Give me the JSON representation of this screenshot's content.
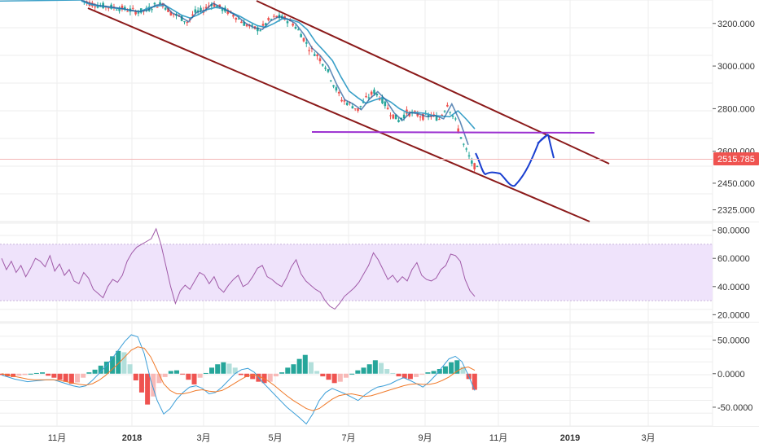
{
  "colors": {
    "up": "#26a69a",
    "down": "#ef5350",
    "ma_fast": "#1e5a9a",
    "ma_slow": "#3aa0c8",
    "channel": "#8b1a1a",
    "horizontal": "#9b30d0",
    "projection": "#1a3fd0",
    "rsi_line": "#a05aa8",
    "rsi_band": "#efe3fb",
    "macd_line": "#3b9ed8",
    "signal_line": "#f07a2a",
    "price_tag": "#ef5350"
  },
  "chart_data": [
    {
      "type": "candlestick",
      "panel": "price",
      "x_ticks": [
        "11月",
        "2018",
        "3月",
        "5月",
        "7月",
        "9月",
        "11月",
        "2019",
        "3月"
      ],
      "y_ticks": [
        "3200.000",
        "3000.000",
        "2800.000",
        "2600.000",
        "2450.000",
        "2325.000"
      ],
      "ylim": [
        2270,
        3310
      ],
      "last_price": "2515.785",
      "series": [
        {
          "values": [
            3310,
            3295,
            3285,
            3280,
            3275,
            3270,
            3262,
            3255,
            3262,
            3285,
            3292,
            3250,
            3232,
            3208,
            3252,
            3262,
            3295,
            3275,
            3255,
            3232,
            3200,
            3180,
            3172,
            3212,
            3232,
            3222,
            3200,
            3150,
            3085,
            3050,
            3000,
            2915,
            2842,
            2822,
            2795,
            2845,
            2880,
            2840,
            2780,
            2745,
            2782,
            2775,
            2762,
            2768,
            2752,
            2822,
            2740,
            2630,
            2545,
            2500
          ]
        },
        {
          "values": [
            3305,
            3290,
            3282,
            3278,
            3272,
            3268,
            3260,
            3256,
            3272,
            3282,
            3285,
            3262,
            3238,
            3225,
            3242,
            3265,
            3275,
            3270,
            3250,
            3232,
            3210,
            3190,
            3182,
            3200,
            3222,
            3218,
            3205,
            3170,
            3112,
            3070,
            3025,
            2950,
            2882,
            2852,
            2825,
            2840,
            2852,
            2830,
            2800,
            2780,
            2782,
            2778,
            2768,
            2765,
            2762,
            2790,
            2750,
            2705
          ]
        }
      ]
    },
    {
      "type": "line",
      "panel": "rsi",
      "y_ticks": [
        "80.0000",
        "60.0000",
        "40.0000",
        "20.0000"
      ],
      "ylim": [
        15,
        85
      ],
      "band": [
        30,
        70
      ],
      "values": [
        60,
        52,
        58,
        50,
        55,
        47,
        53,
        60,
        58,
        54,
        62,
        51,
        56,
        48,
        52,
        44,
        42,
        50,
        46,
        38,
        35,
        32,
        40,
        45,
        43,
        48,
        58,
        64,
        68,
        70,
        72,
        74,
        81,
        70,
        55,
        40,
        28,
        37,
        41,
        38,
        44,
        50,
        48,
        42,
        47,
        39,
        36,
        41,
        45,
        48,
        40,
        42,
        47,
        53,
        55,
        47,
        45,
        42,
        40,
        46,
        54,
        59,
        49,
        44,
        41,
        38,
        36,
        30,
        26,
        24,
        28,
        33,
        36,
        39,
        43,
        49,
        55,
        64,
        59,
        52,
        45,
        48,
        43,
        47,
        44,
        52,
        57,
        48,
        45,
        44,
        46,
        52,
        55,
        63,
        62,
        58,
        45,
        37,
        33
      ]
    },
    {
      "type": "bar",
      "panel": "macd",
      "y_ticks": [
        "50.0000",
        "0.0000",
        "-50.0000"
      ],
      "ylim": [
        -78,
        75
      ],
      "histogram": [
        -2,
        -4,
        -5,
        -3,
        -2,
        0,
        1,
        2,
        -3,
        -6,
        -9,
        -12,
        -15,
        -13,
        -6,
        2,
        6,
        12,
        18,
        26,
        34,
        32,
        14,
        -10,
        -28,
        -46,
        -34,
        -14,
        -5,
        4,
        5,
        -1,
        -9,
        -16,
        -6,
        1,
        9,
        14,
        17,
        15,
        9,
        -2,
        -5,
        -8,
        -12,
        -14,
        -12,
        -4,
        2,
        9,
        14,
        22,
        28,
        17,
        4,
        -4,
        -9,
        -14,
        -12,
        -6,
        0,
        5,
        9,
        14,
        20,
        16,
        7,
        1,
        -4,
        -7,
        -8,
        -5,
        -1,
        2,
        4,
        7,
        11,
        17,
        20,
        10,
        -8,
        -24
      ],
      "macd": [
        -2,
        -5,
        -8,
        -10,
        -12,
        -11,
        -10,
        -9,
        -9,
        -12,
        -15,
        -18,
        -20,
        -18,
        -10,
        0,
        10,
        22,
        35,
        48,
        58,
        55,
        30,
        -10,
        -40,
        -60,
        -52,
        -38,
        -28,
        -20,
        -18,
        -22,
        -30,
        -28,
        -20,
        -10,
        0,
        6,
        8,
        2,
        -10,
        -20,
        -30,
        -40,
        -50,
        -58,
        -66,
        -75,
        -60,
        -40,
        -28,
        -22,
        -26,
        -30,
        -35,
        -40,
        -32,
        -25,
        -20,
        -18,
        -15,
        -10,
        -6,
        -10,
        -15,
        -20,
        -12,
        -2,
        10,
        22,
        26,
        18,
        -2,
        -25
      ],
      "signal": [
        0,
        -2,
        -4,
        -6,
        -8,
        -9,
        -9,
        -9,
        -9,
        -10,
        -12,
        -14,
        -16,
        -17,
        -15,
        -10,
        -3,
        6,
        15,
        25,
        35,
        40,
        38,
        25,
        5,
        -15,
        -25,
        -30,
        -30,
        -28,
        -25,
        -24,
        -26,
        -27,
        -25,
        -20,
        -14,
        -8,
        -3,
        -2,
        -5,
        -10,
        -17,
        -25,
        -33,
        -40,
        -46,
        -52,
        -55,
        -52,
        -45,
        -38,
        -33,
        -31,
        -30,
        -32,
        -34,
        -33,
        -30,
        -27,
        -24,
        -21,
        -18,
        -16,
        -15,
        -16,
        -16,
        -14,
        -10,
        -5,
        2,
        8,
        10,
        5
      ]
    }
  ]
}
